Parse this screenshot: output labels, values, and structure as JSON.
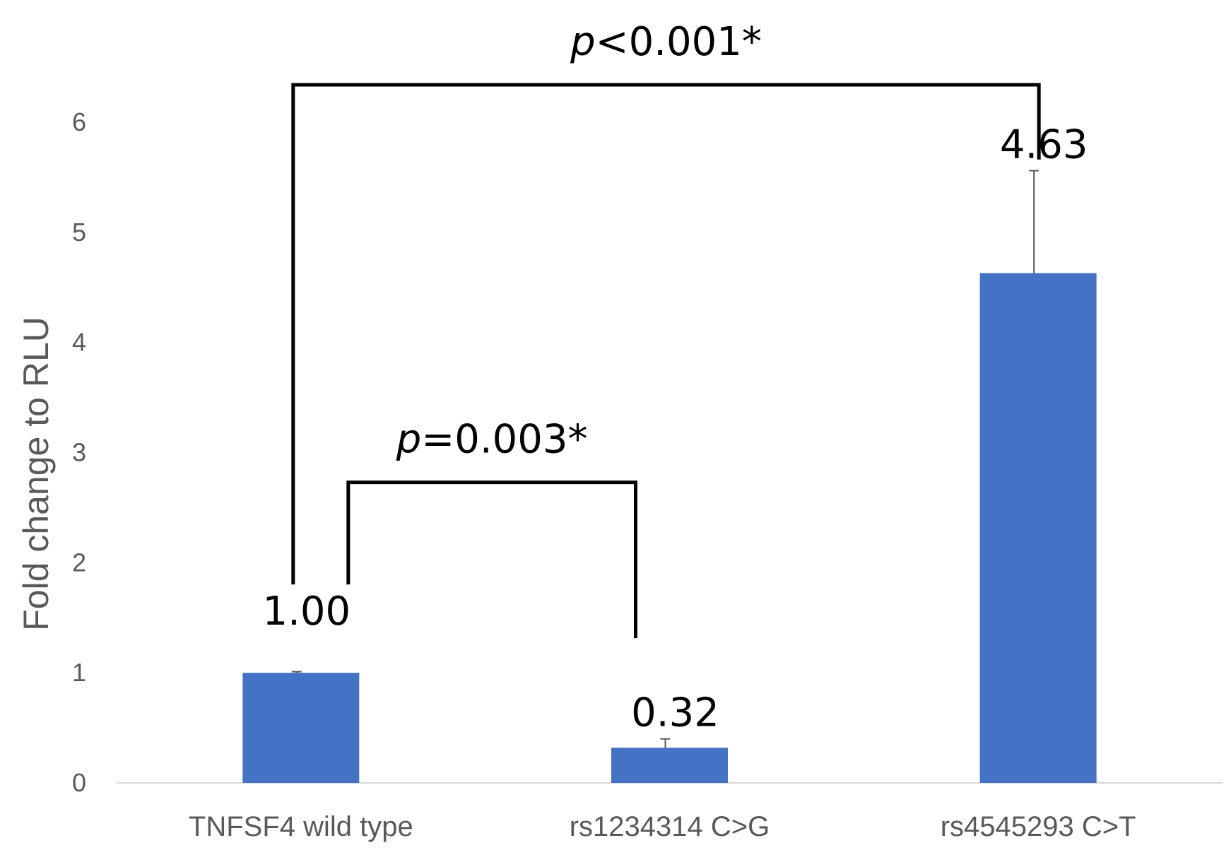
{
  "chart_data": {
    "type": "bar",
    "title": "",
    "xlabel": "",
    "ylabel": "Fold change to RLU",
    "ylim": [
      0,
      6
    ],
    "yticks": [
      0,
      1,
      2,
      3,
      4,
      5,
      6
    ],
    "grid": false,
    "categories": [
      "TNFSF4 wild type",
      "rs1234314 C>G",
      "rs4545293 C>T"
    ],
    "values": [
      1.0,
      0.32,
      4.63
    ],
    "error_upper": [
      0.01,
      0.08,
      0.93
    ],
    "data_labels": [
      "1.00",
      "0.32",
      "4.63"
    ],
    "bar_color": "#4472c4",
    "annotations": [
      {
        "from": "TNFSF4 wild type",
        "to": "rs1234314 C>G",
        "prefix": "p",
        "text": "=0.003*"
      },
      {
        "from": "TNFSF4 wild type",
        "to": "rs4545293 C>T",
        "prefix": "p",
        "text": "<0.001*"
      }
    ]
  }
}
